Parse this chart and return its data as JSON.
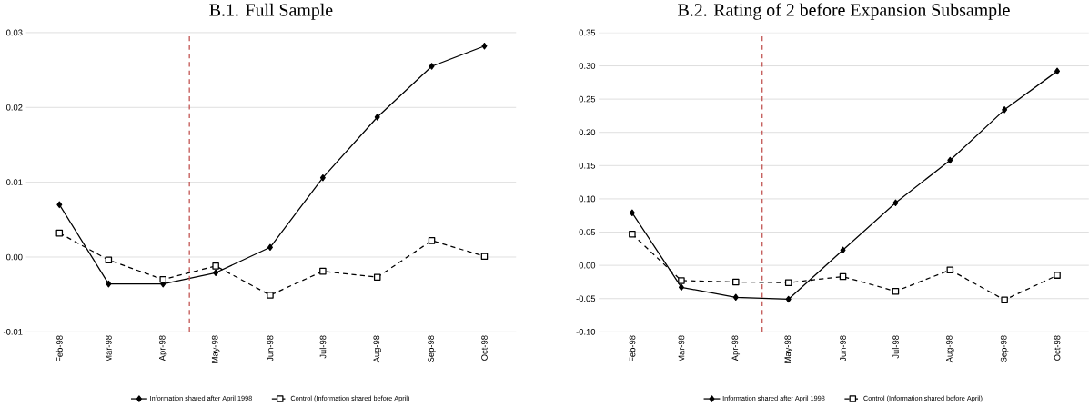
{
  "chart_data": [
    {
      "type": "line",
      "title": "B.1. Full Sample",
      "x": [
        "1998-02",
        "1998-03",
        "1998-04",
        "1998-05",
        "1998-06",
        "1998-07",
        "1998-08",
        "1998-09",
        "1998-10"
      ],
      "xlim": [
        "1998-01-13",
        "1998-10-19"
      ],
      "xticks": [
        {
          "value": "1998-02",
          "label": "Feb-98"
        },
        {
          "value": "1998-03",
          "label": "Mar-98"
        },
        {
          "value": "1998-04",
          "label": "Apr-98"
        },
        {
          "value": "1998-05",
          "label": "May-98"
        },
        {
          "value": "1998-06",
          "label": "Jun-98"
        },
        {
          "value": "1998-07",
          "label": "Jul-98"
        },
        {
          "value": "1998-08",
          "label": "Aug-98"
        },
        {
          "value": "1998-09",
          "label": "Sep-98"
        },
        {
          "value": "1998-10",
          "label": "Oct-98"
        }
      ],
      "series": [
        {
          "name": "Information shared after April 1998",
          "color": "#000000",
          "marker": "diamond",
          "line_style": "solid",
          "values": [
            0.007,
            -0.0036,
            -0.0036,
            -0.0021,
            0.0013,
            0.0106,
            0.0187,
            0.0255,
            0.0282
          ]
        },
        {
          "name": "Control (Information shared before April)",
          "color": "#000000",
          "marker": "square",
          "line_style": "dashed",
          "values": [
            0.0032,
            -0.0004,
            -0.003,
            -0.0012,
            -0.0051,
            -0.0019,
            -0.0027,
            0.0022,
            0.0001
          ]
        }
      ],
      "ylim": [
        -0.01,
        0.03
      ],
      "yticks": [
        {
          "value": -0.01,
          "label": "-0.01"
        },
        {
          "value": 0,
          "label": "0.00"
        },
        {
          "value": 0.01,
          "label": "0.01"
        },
        {
          "value": 0.02,
          "label": "0.02"
        },
        {
          "value": 0.03,
          "label": "0.03"
        }
      ],
      "grid": "y",
      "legend": "bottom",
      "ref_lines": [
        {
          "axis": "x",
          "value": "1998-04-16",
          "color": "#c0504d",
          "line_style": "dashed"
        }
      ]
    },
    {
      "type": "line",
      "title": "B.2. Rating of 2 before Expansion Subsample",
      "x": [
        "1998-02",
        "1998-03",
        "1998-04",
        "1998-05",
        "1998-06",
        "1998-07",
        "1998-08",
        "1998-09",
        "1998-10"
      ],
      "xlim": [
        "1998-01-13",
        "1998-10-19"
      ],
      "xticks": [
        {
          "value": "1998-02",
          "label": "Feb-98"
        },
        {
          "value": "1998-03",
          "label": "Mar-98"
        },
        {
          "value": "1998-04",
          "label": "Apr-98"
        },
        {
          "value": "1998-05",
          "label": "May-98"
        },
        {
          "value": "1998-06",
          "label": "Jun-98"
        },
        {
          "value": "1998-07",
          "label": "Jul-98"
        },
        {
          "value": "1998-08",
          "label": "Aug-98"
        },
        {
          "value": "1998-09",
          "label": "Sep-98"
        },
        {
          "value": "1998-10",
          "label": "Oct-98"
        }
      ],
      "series": [
        {
          "name": "Information shared after April 1998",
          "color": "#000000",
          "marker": "diamond",
          "line_style": "solid",
          "values": [
            0.079,
            -0.033,
            -0.048,
            -0.051,
            0.023,
            0.094,
            0.158,
            0.234,
            0.292
          ]
        },
        {
          "name": "Control (Information shared before April)",
          "color": "#000000",
          "marker": "square",
          "line_style": "dashed",
          "values": [
            0.047,
            -0.023,
            -0.025,
            -0.026,
            -0.017,
            -0.039,
            -0.007,
            -0.052,
            -0.015
          ]
        }
      ],
      "ylim": [
        -0.1,
        0.35
      ],
      "yticks": [
        {
          "value": -0.1,
          "label": "-0.10"
        },
        {
          "value": -0.05,
          "label": "-0.05"
        },
        {
          "value": 0,
          "label": "0.00"
        },
        {
          "value": 0.05,
          "label": "0.05"
        },
        {
          "value": 0.1,
          "label": "0.10"
        },
        {
          "value": 0.15,
          "label": "0.15"
        },
        {
          "value": 0.2,
          "label": "0.20"
        },
        {
          "value": 0.25,
          "label": "0.25"
        },
        {
          "value": 0.3,
          "label": "0.30"
        },
        {
          "value": 0.35,
          "label": "0.35"
        }
      ],
      "grid": "y",
      "legend": "bottom",
      "ref_lines": [
        {
          "axis": "x",
          "value": "1998-04-16",
          "color": "#c0504d",
          "line_style": "dashed"
        }
      ]
    }
  ]
}
